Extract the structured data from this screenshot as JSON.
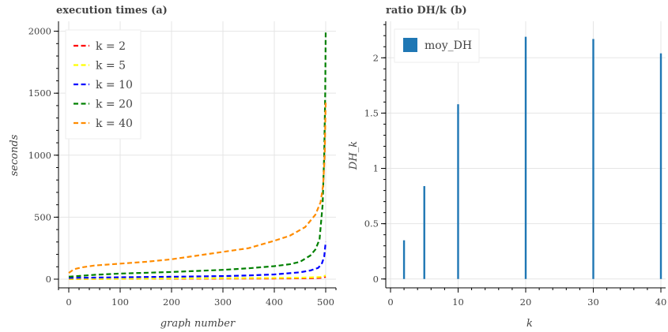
{
  "chart_data": [
    {
      "type": "line",
      "title": "execution times (a)",
      "xlabel": "graph number",
      "ylabel": "seconds",
      "xlim": [
        -20,
        520
      ],
      "ylim": [
        -70,
        2080
      ],
      "xticks": [
        0,
        100,
        200,
        300,
        400,
        500
      ],
      "yticks": [
        0,
        500,
        1000,
        1500,
        2000
      ],
      "grid": true,
      "legend": "top-left",
      "series": [
        {
          "name": "k = 2",
          "color": "#ff0000",
          "x": [
            0,
            100,
            200,
            300,
            400,
            450,
            480,
            490,
            496,
            500
          ],
          "y": [
            1,
            3,
            4,
            5,
            6,
            7,
            9,
            11,
            14,
            20
          ]
        },
        {
          "name": "k = 5",
          "color": "#ffff00",
          "x": [
            0,
            100,
            200,
            300,
            400,
            450,
            480,
            490,
            496,
            500
          ],
          "y": [
            2,
            4,
            6,
            8,
            10,
            12,
            15,
            18,
            22,
            30
          ]
        },
        {
          "name": "k = 10",
          "color": "#0000ff",
          "x": [
            0,
            50,
            100,
            200,
            300,
            350,
            400,
            450,
            470,
            485,
            492,
            497,
            500
          ],
          "y": [
            10,
            13,
            15,
            20,
            25,
            30,
            38,
            55,
            70,
            90,
            120,
            180,
            300
          ]
        },
        {
          "name": "k = 20",
          "color": "#008000",
          "x": [
            0,
            50,
            100,
            200,
            300,
            350,
            400,
            430,
            450,
            470,
            480,
            488,
            494,
            497,
            499,
            500
          ],
          "y": [
            20,
            35,
            45,
            58,
            75,
            88,
            105,
            120,
            140,
            190,
            240,
            320,
            600,
            1000,
            1500,
            2000
          ]
        },
        {
          "name": "k = 40",
          "color": "#ff8c00",
          "x": [
            0,
            10,
            25,
            50,
            100,
            150,
            200,
            250,
            300,
            350,
            400,
            430,
            460,
            480,
            490,
            495,
            498,
            500
          ],
          "y": [
            50,
            80,
            95,
            110,
            125,
            140,
            160,
            190,
            220,
            250,
            310,
            350,
            420,
            520,
            620,
            760,
            1000,
            1440
          ]
        }
      ]
    },
    {
      "type": "bar",
      "title": "ratio DH/k (b)",
      "xlabel": "k",
      "ylabel": "DH_k",
      "xlim": [
        -0.7,
        40.7
      ],
      "ylim": [
        -0.08,
        2.33
      ],
      "xticks": [
        0,
        10,
        20,
        30,
        40
      ],
      "yticks": [
        0,
        0.5,
        1,
        1.5,
        2
      ],
      "ytick_labels": [
        "0",
        "0.5",
        "1",
        "1.5",
        "2"
      ],
      "grid": true,
      "legend": "top-left",
      "series": [
        {
          "name": "moy_DH",
          "color": "#1f77b4",
          "x": [
            2,
            5,
            10,
            20,
            30,
            40
          ],
          "values": [
            0.35,
            0.84,
            1.58,
            2.19,
            2.17,
            2.04
          ]
        }
      ]
    }
  ]
}
